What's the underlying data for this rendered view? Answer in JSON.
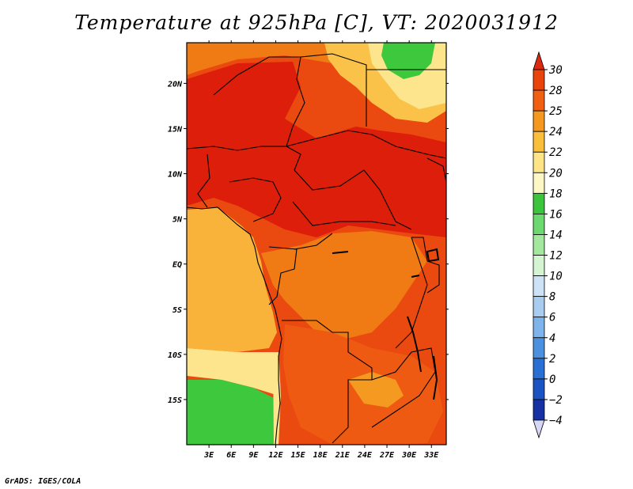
{
  "title": "Temperature at 925hPa [C], VT: 2020031912",
  "credit": "GrADS: IGES/COLA",
  "chart_data": {
    "type": "heatmap",
    "variable": "Temperature at 925hPa",
    "units": "C",
    "valid_time": "2020031912",
    "x_range": [
      0,
      35
    ],
    "y_range": [
      -20,
      24.5
    ],
    "x_ticks": [
      {
        "value": 3,
        "label": "3E"
      },
      {
        "value": 6,
        "label": "6E"
      },
      {
        "value": 9,
        "label": "9E"
      },
      {
        "value": 12,
        "label": "12E"
      },
      {
        "value": 15,
        "label": "15E"
      },
      {
        "value": 18,
        "label": "18E"
      },
      {
        "value": 21,
        "label": "21E"
      },
      {
        "value": 24,
        "label": "24E"
      },
      {
        "value": 27,
        "label": "27E"
      },
      {
        "value": 30,
        "label": "30E"
      },
      {
        "value": 33,
        "label": "33E"
      }
    ],
    "y_ticks": [
      {
        "value": 20,
        "label": "20N"
      },
      {
        "value": 15,
        "label": "15N"
      },
      {
        "value": 10,
        "label": "10N"
      },
      {
        "value": 5,
        "label": "5N"
      },
      {
        "value": 0,
        "label": "EQ"
      },
      {
        "value": -5,
        "label": "5S"
      },
      {
        "value": -10,
        "label": "10S"
      },
      {
        "value": -15,
        "label": "15S"
      }
    ],
    "colorbar": {
      "levels": [
        "30",
        "28",
        "25",
        "24",
        "22",
        "20",
        "18",
        "16",
        "14",
        "12",
        "10",
        "8",
        "6",
        "4",
        "2",
        "0",
        "−2",
        "−4"
      ],
      "colors": [
        "#dc2a12",
        "#e8440c",
        "#f06010",
        "#f5981f",
        "#f9be3a",
        "#fde487",
        "#fdf7c6",
        "#3cc53c",
        "#6ed870",
        "#a4e8a0",
        "#d5f5d2",
        "#cce2f6",
        "#a8cdf1",
        "#7db4ec",
        "#4c90e0",
        "#2a6fd3",
        "#1b53c3",
        "#1631a4",
        "#0c177a",
        "#d6d6f6"
      ]
    },
    "regions": [
      {
        "name": "hot-core",
        "color": "#dc1e0a"
      },
      {
        "name": "warm",
        "color": "#ef5a12"
      },
      {
        "name": "orange",
        "color": "#f08a16"
      },
      {
        "name": "light-orange",
        "color": "#f9b23a"
      },
      {
        "name": "pale-yellow",
        "color": "#fde58d"
      },
      {
        "name": "green",
        "color": "#3ec83e"
      }
    ]
  }
}
